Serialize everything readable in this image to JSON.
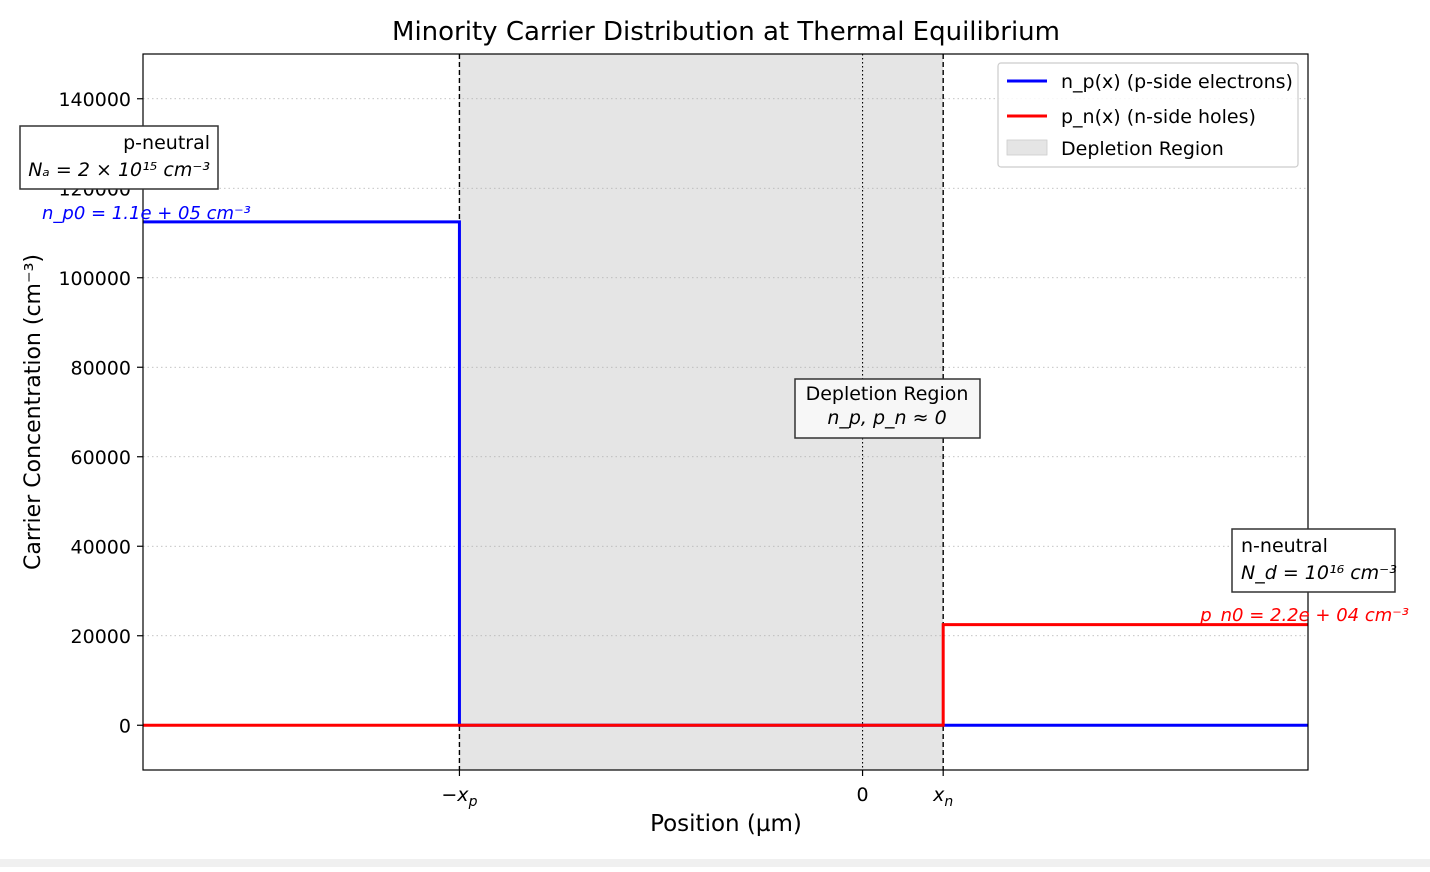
{
  "chart_data": {
    "type": "line",
    "title": "Minority Carrier Distribution at Thermal Equilibrium",
    "xlabel": "Position (µm)",
    "ylabel": "Carrier Concentration (cm⁻³)",
    "ylim": [
      -10000,
      150000
    ],
    "xlim": [
      -2.1,
      1.3
    ],
    "yticks": [
      0,
      20000,
      40000,
      60000,
      80000,
      100000,
      120000,
      140000
    ],
    "xticks": [
      {
        "value": -1.1765,
        "label": "−x_p"
      },
      {
        "value": 0,
        "label": "0"
      },
      {
        "value": 0.2353,
        "label": "x_n"
      }
    ],
    "grid": "y-dotted",
    "legend_position": "top-right",
    "series": [
      {
        "name": "n_p(x) (p-side electrons)",
        "color": "#0000ff",
        "x": [
          -2.1,
          -1.1765,
          -1.1765,
          1.3
        ],
        "y": [
          112500,
          112500,
          0,
          0
        ]
      },
      {
        "name": "p_n(x) (n-side holes)",
        "color": "#ff0000",
        "x": [
          -2.1,
          0.2353,
          0.2353,
          1.3
        ],
        "y": [
          0,
          0,
          22500,
          22500
        ]
      }
    ],
    "regions": [
      {
        "name": "Depletion Region",
        "x0": -1.1765,
        "x1": 0.2353,
        "color": "#e5e5e5"
      }
    ],
    "annotations": {
      "p_neutral": {
        "line1": "p-neutral",
        "line2": "Nₐ = 2 × 10¹⁵ cm⁻³"
      },
      "np0": "n_p0 = 1.1e + 05 cm⁻³",
      "depletion": {
        "line1": "Depletion Region",
        "line2": "n_p, p_n ≈ 0"
      },
      "n_neutral": {
        "line1": "n-neutral",
        "line2": "N_d = 10¹⁶ cm⁻³"
      },
      "pn0": "p_n0 = 2.2e + 04 cm⁻³"
    }
  }
}
